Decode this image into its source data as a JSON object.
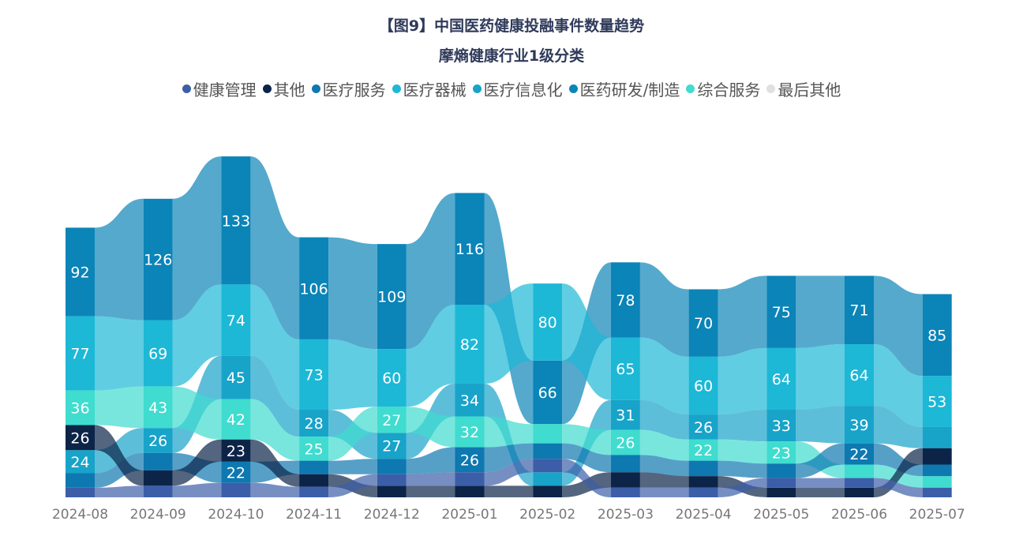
{
  "chart_data": {
    "type": "ribbon",
    "title": "【图9】中国医药健康投融事件数量趋势",
    "subtitle": "摩熵健康行业1级分类",
    "legend_position": "top",
    "grid": false,
    "categories": [
      "2024-08",
      "2024-09",
      "2024-10",
      "2024-11",
      "2024-12",
      "2025-01",
      "2025-02",
      "2025-03",
      "2025-04",
      "2025-05",
      "2025-06",
      "2025-07"
    ],
    "legend": [
      {
        "name": "健康管理",
        "color": "#3c5ea8"
      },
      {
        "name": "其他",
        "color": "#0c2448"
      },
      {
        "name": "医疗服务",
        "color": "#0e78b0"
      },
      {
        "name": "医疗器械",
        "color": "#1cb8d6"
      },
      {
        "name": "医疗信息化",
        "color": "#18a3c9"
      },
      {
        "name": "医药研发/制造",
        "color": "#0b84b8"
      },
      {
        "name": "综合服务",
        "color": "#3fdccf"
      },
      {
        "name": "最后其他",
        "color": "#e0e0e0"
      }
    ],
    "series": [
      {
        "name": "医药研发/制造",
        "color": "#0b84b8",
        "values": [
          92,
          126,
          133,
          106,
          109,
          116,
          66,
          78,
          70,
          75,
          71,
          85
        ],
        "labels": [
          92,
          126,
          133,
          106,
          109,
          116,
          66,
          78,
          70,
          75,
          71,
          85
        ]
      },
      {
        "name": "医疗器械",
        "color": "#1cb8d6",
        "values": [
          77,
          69,
          74,
          73,
          60,
          82,
          80,
          65,
          60,
          64,
          64,
          53
        ],
        "labels": [
          77,
          69,
          74,
          73,
          60,
          82,
          80,
          65,
          60,
          64,
          64,
          53
        ]
      },
      {
        "name": "医疗信息化",
        "color": "#18a3c9",
        "values": [
          24,
          26,
          45,
          28,
          27,
          34,
          14,
          31,
          26,
          33,
          39,
          22
        ],
        "labels": [
          24,
          26,
          45,
          28,
          27,
          34,
          null,
          31,
          26,
          33,
          39,
          null
        ]
      },
      {
        "name": "综合服务",
        "color": "#3fdccf",
        "values": [
          36,
          43,
          42,
          25,
          27,
          32,
          20,
          26,
          22,
          23,
          14,
          12
        ],
        "labels": [
          36,
          43,
          42,
          25,
          27,
          32,
          null,
          26,
          22,
          23,
          null,
          null
        ]
      },
      {
        "name": "医疗服务",
        "color": "#0e78b0",
        "values": [
          15,
          18,
          22,
          14,
          16,
          26,
          16,
          18,
          16,
          15,
          22,
          12
        ],
        "labels": [
          null,
          null,
          22,
          null,
          null,
          26,
          null,
          null,
          null,
          null,
          22,
          null
        ]
      },
      {
        "name": "其他",
        "color": "#0c2448",
        "values": [
          26,
          16,
          23,
          13,
          12,
          12,
          12,
          16,
          12,
          10,
          10,
          17
        ],
        "labels": [
          26,
          null,
          23,
          null,
          null,
          null,
          null,
          null,
          null,
          null,
          null,
          null
        ]
      },
      {
        "name": "健康管理",
        "color": "#3c5ea8",
        "values": [
          10,
          12,
          15,
          11,
          12,
          14,
          14,
          10,
          10,
          10,
          10,
          10
        ],
        "labels": [
          null,
          null,
          null,
          null,
          null,
          null,
          null,
          null,
          null,
          null,
          null,
          null
        ]
      }
    ]
  }
}
